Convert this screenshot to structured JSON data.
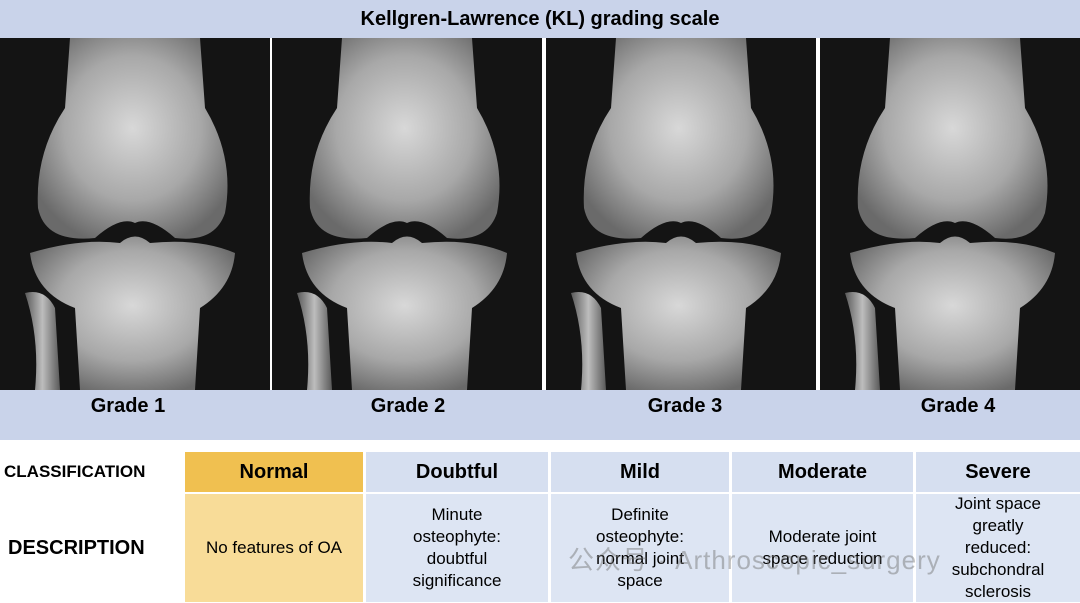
{
  "title": "Kellgren-Lawrence (KL) grading scale",
  "grades": [
    "Grade 1",
    "Grade 2",
    "Grade 3",
    "Grade 4"
  ],
  "table": {
    "row_headers": [
      "CLASSIFICATION",
      "DESCRIPTION"
    ],
    "classifications": [
      "Normal",
      "Doubtful",
      "Mild",
      "Moderate",
      "Severe"
    ],
    "descriptions": [
      "No features of OA",
      "Minute osteophyte: doubtful significance",
      "Definite osteophyte: normal joint space",
      "Moderate joint space reduction",
      "Joint space greatly reduced: subchondral sclerosis"
    ]
  },
  "watermark": "公众号 · Arthroscopic_surgery"
}
